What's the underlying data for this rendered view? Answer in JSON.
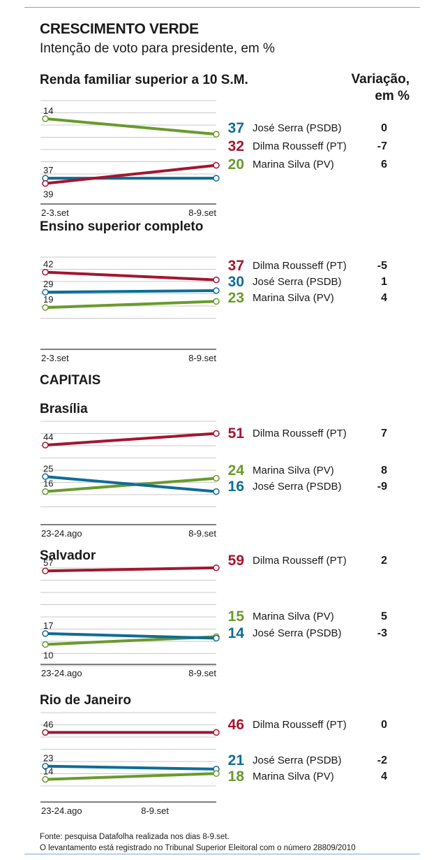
{
  "header": {
    "title": "CRESCIMENTO VERDE",
    "subtitle": "Intenção de voto para presidente, em %",
    "variation_line1": "Variação,",
    "variation_line2": "em %",
    "capitals_label": "CAPITAIS"
  },
  "colors": {
    "dilma": "#a3162f",
    "serra": "#0f6c96",
    "marina": "#6a9a2c"
  },
  "chart_data": [
    {
      "type": "line",
      "title": "Renda familiar superior a 10 S.M.",
      "x": [
        "2-3.set",
        "8-9.set"
      ],
      "series": [
        {
          "name": "José Serra (PSDB)",
          "key": "serra",
          "values": [
            37,
            37
          ],
          "start_label": "37",
          "end_label": "37",
          "variation": "0"
        },
        {
          "name": "Dilma Rousseff (PT)",
          "key": "dilma",
          "values": [
            39,
            32
          ],
          "start_label": "39",
          "end_label": "32",
          "variation": "-7"
        },
        {
          "name": "Marina Silva (PV)",
          "key": "marina",
          "values": [
            14,
            20
          ],
          "start_label": "14",
          "end_label": "20",
          "variation": "6"
        }
      ]
    },
    {
      "type": "line",
      "title": "Ensino superior completo",
      "x": [
        "2-3.set",
        "8-9.set"
      ],
      "series": [
        {
          "name": "Dilma Rousseff (PT)",
          "key": "dilma",
          "values": [
            42,
            37
          ],
          "start_label": "42",
          "end_label": "37",
          "variation": "-5"
        },
        {
          "name": "José Serra (PSDB)",
          "key": "serra",
          "values": [
            29,
            30
          ],
          "start_label": "29",
          "end_label": "30",
          "variation": "1"
        },
        {
          "name": "Marina Silva (PV)",
          "key": "marina",
          "values": [
            19,
            23
          ],
          "start_label": "19",
          "end_label": "23",
          "variation": "4"
        }
      ]
    },
    {
      "type": "line",
      "title": "Brasília",
      "x": [
        "23-24.ago",
        "8-9.set"
      ],
      "series": [
        {
          "name": "Dilma Rousseff (PT)",
          "key": "dilma",
          "values": [
            44,
            51
          ],
          "start_label": "44",
          "end_label": "51",
          "variation": "7"
        },
        {
          "name": "Marina Silva (PV)",
          "key": "marina",
          "values": [
            16,
            24
          ],
          "start_label": "16",
          "end_label": "24",
          "variation": "8"
        },
        {
          "name": "José Serra (PSDB)",
          "key": "serra",
          "values": [
            25,
            16
          ],
          "start_label": "25",
          "end_label": "16",
          "variation": "-9"
        }
      ]
    },
    {
      "type": "line",
      "title": "Salvador",
      "x": [
        "23-24.ago",
        "8-9.set"
      ],
      "series": [
        {
          "name": "Dilma Rousseff (PT)",
          "key": "dilma",
          "values": [
            57,
            59
          ],
          "start_label": "57",
          "end_label": "59",
          "variation": "2"
        },
        {
          "name": "Marina Silva (PV)",
          "key": "marina",
          "values": [
            10,
            15
          ],
          "start_label": "10",
          "end_label": "15",
          "variation": "5"
        },
        {
          "name": "José Serra (PSDB)",
          "key": "serra",
          "values": [
            17,
            14
          ],
          "start_label": "17",
          "end_label": "14",
          "variation": "-3"
        }
      ]
    },
    {
      "type": "line",
      "title": "Rio de Janeiro",
      "x": [
        "23-24.ago",
        "8-9.set"
      ],
      "series": [
        {
          "name": "Dilma Rousseff (PT)",
          "key": "dilma",
          "values": [
            46,
            46
          ],
          "start_label": "46",
          "end_label": "46",
          "variation": "0"
        },
        {
          "name": "José Serra (PSDB)",
          "key": "serra",
          "values": [
            23,
            21
          ],
          "start_label": "23",
          "end_label": "21",
          "variation": "-2"
        },
        {
          "name": "Marina Silva (PV)",
          "key": "marina",
          "values": [
            14,
            18
          ],
          "start_label": "14",
          "end_label": "18",
          "variation": "4"
        }
      ]
    }
  ],
  "footer": {
    "line1": "Fonte: pesquisa Datafolha realizada nos dias 8-9.set.",
    "line2": "O levantamento está registrado no Tribunal Superior Eleitoral com o número 28809/2010"
  }
}
